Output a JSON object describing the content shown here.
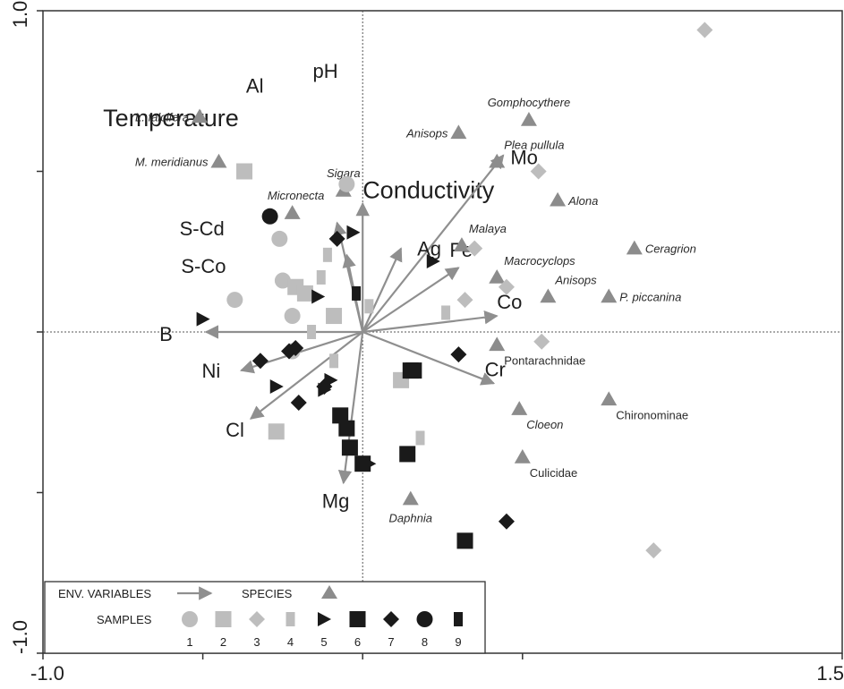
{
  "chart_data": {
    "type": "scatter",
    "subtype": "ordination-triplot",
    "title": "",
    "xlabel": "",
    "ylabel": "",
    "xlim": [
      -1.0,
      1.5
    ],
    "ylim": [
      -1.0,
      1.0
    ],
    "x_ticks": [
      {
        "value": -1.0,
        "label": "-1.0"
      },
      {
        "value": 1.5,
        "label": "1.5"
      }
    ],
    "y_ticks": [
      {
        "value": 1.0,
        "label": "1.0"
      },
      {
        "value": -1.0,
        "label": "-1.0"
      }
    ],
    "y_minor_ticks": [
      0.5,
      0.0,
      -0.5
    ],
    "x_minor_ticks": [
      -0.5,
      0.0,
      0.5
    ],
    "zero_lines": true,
    "colors": {
      "arrow": "#8f8f8f",
      "species": "#8c8c8c",
      "sample_light": "#bdbdbd",
      "sample_dark": "#1a1a1a",
      "axis": "#333333"
    },
    "env_variables": [
      {
        "name": "Al",
        "x": -0.32,
        "y": 0.74,
        "label_size": "large",
        "arrow": false
      },
      {
        "name": "pH",
        "x": -0.1,
        "y": 0.78,
        "label_size": "large",
        "arrow": false
      },
      {
        "name": "Temperature",
        "x": -0.35,
        "y": 0.63,
        "label_size": "xlarge",
        "arrow": false
      },
      {
        "name": "Conductivity",
        "x": 0.0,
        "y": 0.4,
        "label_size": "xlarge",
        "arrow": true
      },
      {
        "name": "Mo",
        "x": 0.44,
        "y": 0.55,
        "label_size": "large",
        "arrow": true
      },
      {
        "name": "Ag",
        "x": 0.12,
        "y": 0.26,
        "label_size": "large",
        "arrow": true
      },
      {
        "name": "Fe",
        "x": 0.3,
        "y": 0.2,
        "label_size": "large",
        "arrow": true
      },
      {
        "name": "Co",
        "x": 0.42,
        "y": 0.05,
        "label_size": "large",
        "arrow": true
      },
      {
        "name": "Cr",
        "x": 0.41,
        "y": -0.16,
        "label_size": "large",
        "arrow": true
      },
      {
        "name": "Mg",
        "x": -0.06,
        "y": -0.47,
        "label_size": "large",
        "arrow": true
      },
      {
        "name": "Cl",
        "x": -0.35,
        "y": -0.27,
        "label_size": "large",
        "arrow": true
      },
      {
        "name": "Ni",
        "x": -0.38,
        "y": -0.12,
        "label_size": "large",
        "arrow": true
      },
      {
        "name": "B",
        "x": -0.49,
        "y": 0.0,
        "label_size": "large",
        "arrow": true
      },
      {
        "name": "S-Cd",
        "x": -0.08,
        "y": 0.34,
        "label_size": "large",
        "arrow": true
      },
      {
        "name": "S-Co",
        "x": -0.05,
        "y": 0.24,
        "label_size": "large",
        "arrow": true
      }
    ],
    "species": [
      {
        "name": "L. falcifera",
        "x": -0.51,
        "y": 0.67,
        "label_style": "italic",
        "label_side": "left"
      },
      {
        "name": "M. meridianus",
        "x": -0.45,
        "y": 0.53,
        "label_style": "italic",
        "label_side": "left"
      },
      {
        "name": "Micronecta",
        "x": -0.22,
        "y": 0.37,
        "label_style": "italic",
        "label_side": "above-left"
      },
      {
        "name": "Sigara",
        "x": -0.06,
        "y": 0.44,
        "label_style": "italic",
        "label_side": "above"
      },
      {
        "name": "Anisops",
        "x": 0.3,
        "y": 0.62,
        "label_style": "italic",
        "label_side": "left"
      },
      {
        "name": "Gomphocythere",
        "x": 0.52,
        "y": 0.66,
        "label_style": "italic",
        "label_side": "above"
      },
      {
        "name": "Plea pullula",
        "x": 0.42,
        "y": 0.53,
        "label_style": "italic",
        "label_side": "above-right"
      },
      {
        "name": "Alona",
        "x": 0.61,
        "y": 0.41,
        "label_style": "italic",
        "label_side": "right"
      },
      {
        "name": "Malaya",
        "x": 0.31,
        "y": 0.27,
        "label_style": "italic",
        "label_side": "above-right"
      },
      {
        "name": "Ceragrion",
        "x": 0.85,
        "y": 0.26,
        "label_style": "italic",
        "label_side": "right"
      },
      {
        "name": "Macrocyclops",
        "x": 0.42,
        "y": 0.17,
        "label_style": "italic",
        "label_side": "above-right"
      },
      {
        "name": "Anisops",
        "x": 0.58,
        "y": 0.11,
        "label_style": "italic",
        "label_side": "above-right"
      },
      {
        "name": "P. piccanina",
        "x": 0.77,
        "y": 0.11,
        "label_style": "italic",
        "label_side": "right"
      },
      {
        "name": "Pontarachnidae",
        "x": 0.42,
        "y": -0.04,
        "label_style": "normal",
        "label_side": "below-right"
      },
      {
        "name": "Chironominae",
        "x": 0.77,
        "y": -0.21,
        "label_style": "normal",
        "label_side": "below-right"
      },
      {
        "name": "Cloeon",
        "x": 0.49,
        "y": -0.24,
        "label_style": "italic",
        "label_side": "below-right"
      },
      {
        "name": "Culicidae",
        "x": 0.5,
        "y": -0.39,
        "label_style": "normal",
        "label_side": "below-right"
      },
      {
        "name": "Daphnia",
        "x": 0.15,
        "y": -0.52,
        "label_style": "italic",
        "label_side": "below"
      }
    ],
    "samples": [
      {
        "group": 1,
        "x": -0.05,
        "y": 0.46
      },
      {
        "group": 1,
        "x": -0.26,
        "y": 0.29
      },
      {
        "group": 1,
        "x": -0.25,
        "y": 0.16
      },
      {
        "group": 1,
        "x": -0.4,
        "y": 0.1
      },
      {
        "group": 1,
        "x": -0.22,
        "y": 0.05
      },
      {
        "group": 1,
        "x": -0.22,
        "y": -0.06
      },
      {
        "group": 2,
        "x": -0.37,
        "y": 0.5
      },
      {
        "group": 2,
        "x": -0.21,
        "y": 0.14
      },
      {
        "group": 2,
        "x": -0.18,
        "y": 0.12
      },
      {
        "group": 2,
        "x": -0.09,
        "y": 0.05
      },
      {
        "group": 2,
        "x": 0.12,
        "y": -0.15
      },
      {
        "group": 2,
        "x": -0.27,
        "y": -0.31
      },
      {
        "group": 3,
        "x": 1.07,
        "y": 0.94
      },
      {
        "group": 3,
        "x": 0.55,
        "y": 0.5
      },
      {
        "group": 3,
        "x": 0.35,
        "y": 0.26
      },
      {
        "group": 3,
        "x": 0.45,
        "y": 0.14
      },
      {
        "group": 3,
        "x": 0.32,
        "y": 0.1
      },
      {
        "group": 3,
        "x": 0.56,
        "y": -0.03
      },
      {
        "group": 3,
        "x": 0.91,
        "y": -0.68
      },
      {
        "group": 4,
        "x": -0.11,
        "y": 0.24
      },
      {
        "group": 4,
        "x": -0.13,
        "y": 0.17
      },
      {
        "group": 4,
        "x": 0.02,
        "y": 0.08
      },
      {
        "group": 4,
        "x": 0.26,
        "y": 0.06
      },
      {
        "group": 4,
        "x": -0.16,
        "y": 0.0
      },
      {
        "group": 4,
        "x": -0.09,
        "y": -0.09
      },
      {
        "group": 4,
        "x": 0.18,
        "y": -0.33
      },
      {
        "group": 5,
        "x": -0.03,
        "y": 0.31
      },
      {
        "group": 5,
        "x": 0.22,
        "y": 0.22
      },
      {
        "group": 5,
        "x": -0.14,
        "y": 0.11
      },
      {
        "group": 5,
        "x": -0.5,
        "y": 0.04
      },
      {
        "group": 5,
        "x": -0.27,
        "y": -0.17
      },
      {
        "group": 5,
        "x": -0.1,
        "y": -0.15
      },
      {
        "group": 5,
        "x": -0.12,
        "y": -0.18
      },
      {
        "group": 5,
        "x": 0.02,
        "y": -0.41
      },
      {
        "group": 6,
        "x": 0.15,
        "y": -0.12
      },
      {
        "group": 6,
        "x": 0.16,
        "y": -0.12
      },
      {
        "group": 6,
        "x": -0.07,
        "y": -0.26
      },
      {
        "group": 6,
        "x": -0.05,
        "y": -0.3
      },
      {
        "group": 6,
        "x": -0.04,
        "y": -0.36
      },
      {
        "group": 6,
        "x": 0.0,
        "y": -0.41
      },
      {
        "group": 6,
        "x": 0.14,
        "y": -0.38
      },
      {
        "group": 6,
        "x": 0.32,
        "y": -0.65
      },
      {
        "group": 7,
        "x": -0.08,
        "y": 0.29
      },
      {
        "group": 7,
        "x": -0.21,
        "y": -0.05
      },
      {
        "group": 7,
        "x": -0.23,
        "y": -0.06
      },
      {
        "group": 7,
        "x": -0.32,
        "y": -0.09
      },
      {
        "group": 7,
        "x": -0.12,
        "y": -0.17
      },
      {
        "group": 7,
        "x": -0.2,
        "y": -0.22
      },
      {
        "group": 7,
        "x": 0.3,
        "y": -0.07
      },
      {
        "group": 7,
        "x": 0.45,
        "y": -0.59
      },
      {
        "group": 8,
        "x": -0.29,
        "y": 0.36
      },
      {
        "group": 9,
        "x": -0.02,
        "y": 0.12
      }
    ],
    "legend": {
      "position": "bottom-left",
      "env_label": "ENV. VARIABLES",
      "species_label": "SPECIES",
      "samples_label": "SAMPLES",
      "groups": [
        "1",
        "2",
        "3",
        "4",
        "5",
        "6",
        "7",
        "8",
        "9"
      ]
    }
  }
}
